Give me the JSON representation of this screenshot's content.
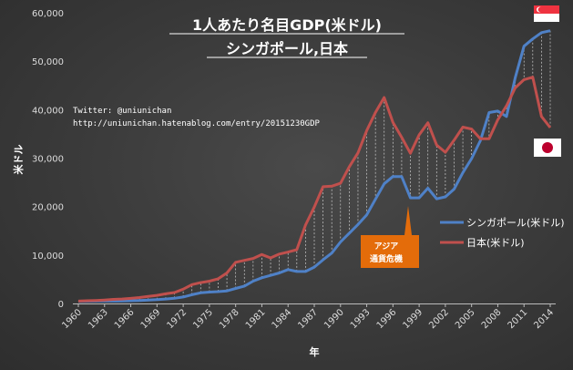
{
  "title_line1": "1人あたり名目GDP(米ドル)",
  "title_line2": "シンガポール,日本",
  "twitter": "Twitter: @uniunichan",
  "url": "http://uniunichan.hatenablog.com/entry/20151230GDP",
  "callout_line1": "アジア",
  "callout_line2": "通貨危機",
  "colors": {
    "singapore": "#4f81c7",
    "japan": "#c0504d",
    "callout": "#e46c0a"
  },
  "chart_data": {
    "type": "line",
    "title": "1人あたり名目GDP(米ドル)",
    "subtitle": "シンガポール,日本",
    "xlabel": "年",
    "ylabel": "米ドル",
    "xlim": [
      1960,
      2014
    ],
    "ylim": [
      0,
      60000
    ],
    "x_ticks": [
      1960,
      1963,
      1966,
      1969,
      1972,
      1975,
      1978,
      1981,
      1984,
      1987,
      1990,
      1993,
      1996,
      1999,
      2002,
      2005,
      2008,
      2011,
      2014
    ],
    "y_ticks": [
      "0",
      "10,000",
      "20,000",
      "30,000",
      "40,000",
      "50,000",
      "60,000"
    ],
    "grid": false,
    "legend": "right",
    "x": [
      1960,
      1961,
      1962,
      1963,
      1964,
      1965,
      1966,
      1967,
      1968,
      1969,
      1970,
      1971,
      1972,
      1973,
      1974,
      1975,
      1976,
      1977,
      1978,
      1979,
      1980,
      1981,
      1982,
      1983,
      1984,
      1985,
      1986,
      1987,
      1988,
      1989,
      1990,
      1991,
      1992,
      1993,
      1994,
      1995,
      1996,
      1997,
      1998,
      1999,
      2000,
      2001,
      2002,
      2003,
      2004,
      2005,
      2006,
      2007,
      2008,
      2009,
      2010,
      2011,
      2012,
      2013,
      2014
    ],
    "series": [
      {
        "name": "シンガポール(米ドル)",
        "values": [
          430,
          450,
          470,
          510,
          490,
          520,
          570,
          630,
          710,
          810,
          920,
          1070,
          1330,
          1800,
          2200,
          2350,
          2450,
          2600,
          3100,
          3600,
          4600,
          5300,
          5800,
          6300,
          7000,
          6600,
          6600,
          7500,
          9000,
          10400,
          12700,
          14500,
          16300,
          18300,
          21500,
          24700,
          26200,
          26200,
          21800,
          21800,
          23800,
          21600,
          22000,
          23600,
          27000,
          29900,
          33600,
          39400,
          39700,
          38600,
          46600,
          53100,
          54600,
          55900,
          56300
        ]
      },
      {
        "name": "日本(米ドル)",
        "values": [
          480,
          560,
          630,
          720,
          840,
          920,
          1060,
          1230,
          1450,
          1670,
          2000,
          2250,
          2950,
          3900,
          4300,
          4600,
          5100,
          6300,
          8500,
          8900,
          9300,
          10100,
          9400,
          10200,
          10600,
          11100,
          16200,
          19900,
          24100,
          24200,
          24800,
          28200,
          31100,
          35700,
          39400,
          42500,
          37400,
          34300,
          31000,
          34800,
          37300,
          32700,
          31200,
          33700,
          36400,
          36000,
          34000,
          34000,
          37900,
          40800,
          44500,
          46200,
          46700,
          38600,
          36300
        ]
      }
    ],
    "annotations": [
      "アジア 通貨危機"
    ]
  }
}
